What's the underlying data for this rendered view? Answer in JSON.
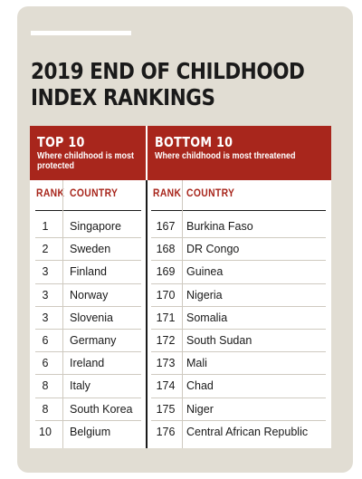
{
  "title_lines": [
    "2019 END OF CHILDHOOD",
    "INDEX RANKINGS"
  ],
  "top": {
    "heading": "TOP 10",
    "subheading": "Where childhood is most protected",
    "rank_label": "RANK",
    "country_label": "COUNTRY",
    "rows": [
      {
        "rank": "1",
        "country": "Singapore"
      },
      {
        "rank": "2",
        "country": "Sweden"
      },
      {
        "rank": "3",
        "country": "Finland"
      },
      {
        "rank": "3",
        "country": "Norway"
      },
      {
        "rank": "3",
        "country": "Slovenia"
      },
      {
        "rank": "6",
        "country": "Germany"
      },
      {
        "rank": "6",
        "country": "Ireland"
      },
      {
        "rank": "8",
        "country": "Italy"
      },
      {
        "rank": "8",
        "country": "South Korea"
      },
      {
        "rank": "10",
        "country": "Belgium"
      }
    ]
  },
  "bottom": {
    "heading": "BOTTOM 10",
    "subheading": "Where childhood is most threatened",
    "rank_label": "RANK",
    "country_label": "COUNTRY",
    "rows": [
      {
        "rank": "167",
        "country": "Burkina Faso"
      },
      {
        "rank": "168",
        "country": "DR Congo"
      },
      {
        "rank": "169",
        "country": "Guinea"
      },
      {
        "rank": "170",
        "country": "Nigeria"
      },
      {
        "rank": "171",
        "country": "Somalia"
      },
      {
        "rank": "172",
        "country": "South Sudan"
      },
      {
        "rank": "173",
        "country": "Mali"
      },
      {
        "rank": "174",
        "country": "Chad"
      },
      {
        "rank": "175",
        "country": "Niger"
      },
      {
        "rank": "176",
        "country": "Central African Republic"
      }
    ]
  },
  "colors": {
    "accent": "#a8261c",
    "card": "#e1ddd3",
    "text": "#1a1a1a"
  }
}
